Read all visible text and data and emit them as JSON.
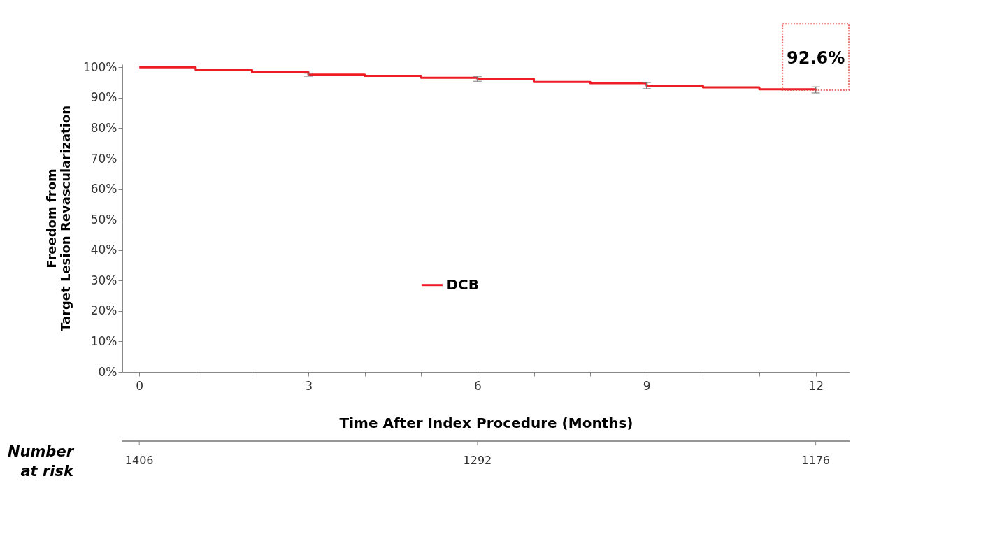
{
  "chart_data": {
    "type": "step",
    "xlabel": "Time After Index Procedure (Months)",
    "ylabel": "Freedom from\nTarget Lesion Revascularization",
    "x": [
      0,
      1,
      2,
      3,
      4,
      5,
      6,
      7,
      8,
      9,
      10,
      11,
      12
    ],
    "series": [
      {
        "name": "DCB",
        "color": "#ee1c25",
        "values": [
          100,
          99.2,
          98.4,
          97.6,
          97.2,
          96.6,
          96.2,
          95.2,
          94.8,
          94.0,
          93.4,
          92.8,
          92.6
        ],
        "errors": [
          null,
          null,
          null,
          0.5,
          null,
          null,
          0.8,
          null,
          null,
          1.0,
          null,
          null,
          1.0
        ]
      }
    ],
    "xlim": [
      -0.3,
      12.6
    ],
    "xticks": [
      0,
      {
        "value": 1,
        "label": null
      },
      {
        "value": 2,
        "label": null
      },
      3,
      {
        "value": 4,
        "label": null
      },
      {
        "value": 5,
        "label": null
      },
      6,
      {
        "value": 7,
        "label": null
      },
      {
        "value": 8,
        "label": null
      },
      9,
      {
        "value": 10,
        "label": null
      },
      {
        "value": 11,
        "label": null
      },
      12
    ],
    "ylim": [
      0,
      101
    ],
    "yticks": [
      {
        "value": 0,
        "label": "0%"
      },
      {
        "value": 10,
        "label": "10%"
      },
      {
        "value": 20,
        "label": "20%"
      },
      {
        "value": 30,
        "label": "30%"
      },
      {
        "value": 40,
        "label": "40%"
      },
      {
        "value": 50,
        "label": "50%"
      },
      {
        "value": 60,
        "label": "60%"
      },
      {
        "value": 70,
        "label": "70%"
      },
      {
        "value": 80,
        "label": "80%"
      },
      {
        "value": 90,
        "label": "90%"
      },
      {
        "value": 100,
        "label": "100%"
      }
    ],
    "grid": false,
    "legend": "center",
    "annotations": [
      {
        "text": "92.6%",
        "x": 12,
        "y": 92.6
      },
      "Number\nat risk",
      "1406",
      "1292",
      "1176"
    ]
  }
}
